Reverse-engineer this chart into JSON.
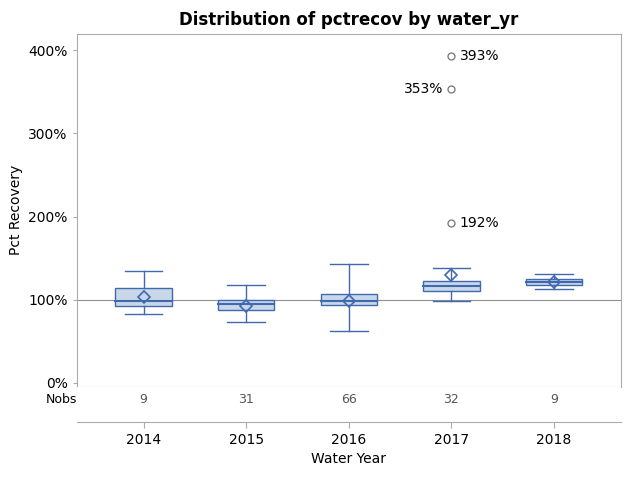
{
  "title": "Distribution of pctrecov by water_yr",
  "xlabel": "Water Year",
  "ylabel": "Pct Recovery",
  "years": [
    2014,
    2015,
    2016,
    2017,
    2018
  ],
  "nobs": [
    9,
    31,
    66,
    32,
    9
  ],
  "box_data": {
    "2014": {
      "q1": 93,
      "median": 99,
      "q3": 114,
      "whisker_low": 83,
      "whisker_high": 135,
      "mean": 103,
      "outliers": []
    },
    "2015": {
      "q1": 88,
      "median": 95,
      "q3": 100,
      "whisker_low": 73,
      "whisker_high": 118,
      "mean": 93,
      "outliers": []
    },
    "2016": {
      "q1": 94,
      "median": 99,
      "q3": 107,
      "whisker_low": 62,
      "whisker_high": 143,
      "mean": 99,
      "outliers": []
    },
    "2017": {
      "q1": 111,
      "median": 117,
      "q3": 122,
      "whisker_low": 98,
      "whisker_high": 138,
      "mean": 130,
      "outliers": [
        192,
        353,
        393
      ]
    },
    "2018": {
      "q1": 118,
      "median": 121,
      "q3": 125,
      "whisker_low": 113,
      "whisker_high": 131,
      "mean": 121,
      "outliers": []
    }
  },
  "outlier_labels": {
    "2017": [
      {
        "value": 393,
        "label": "393%",
        "label_side": "right"
      },
      {
        "value": 353,
        "label": "353%",
        "label_side": "left"
      },
      {
        "value": 192,
        "label": "192%",
        "label_side": "right"
      }
    ]
  },
  "reference_line": 100,
  "ylim": [
    -5,
    420
  ],
  "yticks": [
    0,
    100,
    200,
    300,
    400
  ],
  "ytick_labels": [
    "0%",
    "100%",
    "200%",
    "300%",
    "400%"
  ],
  "box_facecolor": "#c8d8e8",
  "box_edgecolor": "#4169b0",
  "median_color": "#4169b0",
  "whisker_color": "#4169b0",
  "mean_color": "#4169b0",
  "outlier_color": "#808080",
  "ref_line_color": "#909090",
  "background_color": "#ffffff",
  "plot_bg_color": "#ffffff",
  "title_fontsize": 12,
  "label_fontsize": 10,
  "tick_fontsize": 10,
  "nobs_fontsize": 9,
  "box_width": 0.55
}
